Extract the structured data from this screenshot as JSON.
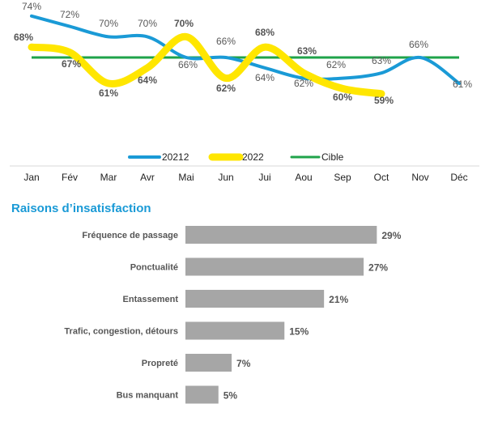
{
  "chart_data": [
    {
      "type": "line",
      "categories": [
        "Jan",
        "Fév",
        "Mar",
        "Avr",
        "Mai",
        "Jun",
        "Jui",
        "Aou",
        "Sep",
        "Oct",
        "Nov",
        "Déc"
      ],
      "series": [
        {
          "name": "20212",
          "color": "#1a9ad6",
          "values": [
            74,
            72,
            70,
            70,
            66,
            66,
            64,
            62,
            62,
            63,
            66,
            61
          ]
        },
        {
          "name": "2022",
          "color": "#ffe600",
          "values": [
            68,
            67,
            61,
            64,
            70,
            62,
            68,
            63,
            60,
            59,
            null,
            null
          ]
        },
        {
          "name": "Cible",
          "color": "#1fa34a",
          "values": [
            66,
            66,
            66,
            66,
            66,
            66,
            66,
            66,
            66,
            66,
            66,
            66
          ]
        }
      ],
      "value_suffix": "%",
      "legend": "bottom"
    },
    {
      "type": "bar",
      "orientation": "horizontal",
      "title": "Raisons d’insatisfaction",
      "categories": [
        "Fréquence de passage",
        "Ponctualité",
        "Entassement",
        "Trafic, congestion, détours",
        "Propreté",
        "Bus manquant"
      ],
      "values": [
        29,
        27,
        21,
        15,
        7,
        5
      ],
      "value_suffix": "%",
      "color": "#a6a6a6"
    }
  ]
}
